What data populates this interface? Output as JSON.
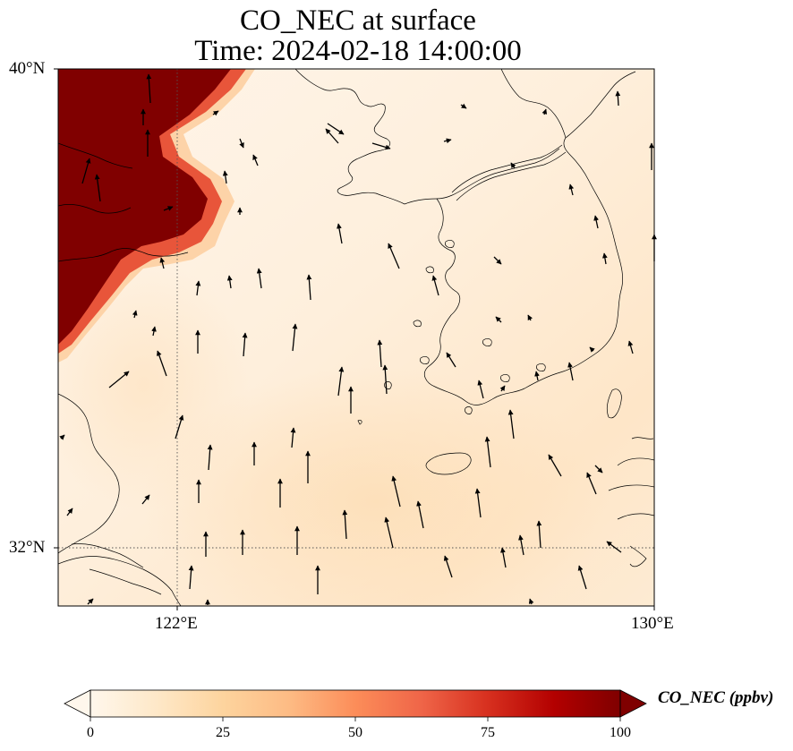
{
  "title": {
    "line1": "CO_NEC at surface",
    "line2": "Time: 2024-02-18 14:00:00"
  },
  "axes": {
    "lat_ticks": [
      "40°N",
      "32°N"
    ],
    "lon_ticks": [
      "122°E",
      "130°E"
    ],
    "lon_range": [
      120,
      130
    ],
    "lat_range": [
      31,
      40
    ],
    "gridlines": "dotted"
  },
  "colorbar": {
    "label": "CO_NEC (ppbv)",
    "ticks": [
      "0",
      "25",
      "50",
      "75",
      "100"
    ],
    "range": [
      0,
      100
    ],
    "extend": "both",
    "colormap": "OrRd",
    "colors": [
      "#fff7ec",
      "#fee8c8",
      "#fdd49e",
      "#fdbb84",
      "#fc8d59",
      "#ef6548",
      "#d7301f",
      "#b30000",
      "#7f0000"
    ]
  },
  "colors": {
    "background_field": "#fef0dc",
    "plume": "#800000",
    "coastline": "#000000",
    "vectors": "#000000"
  }
}
